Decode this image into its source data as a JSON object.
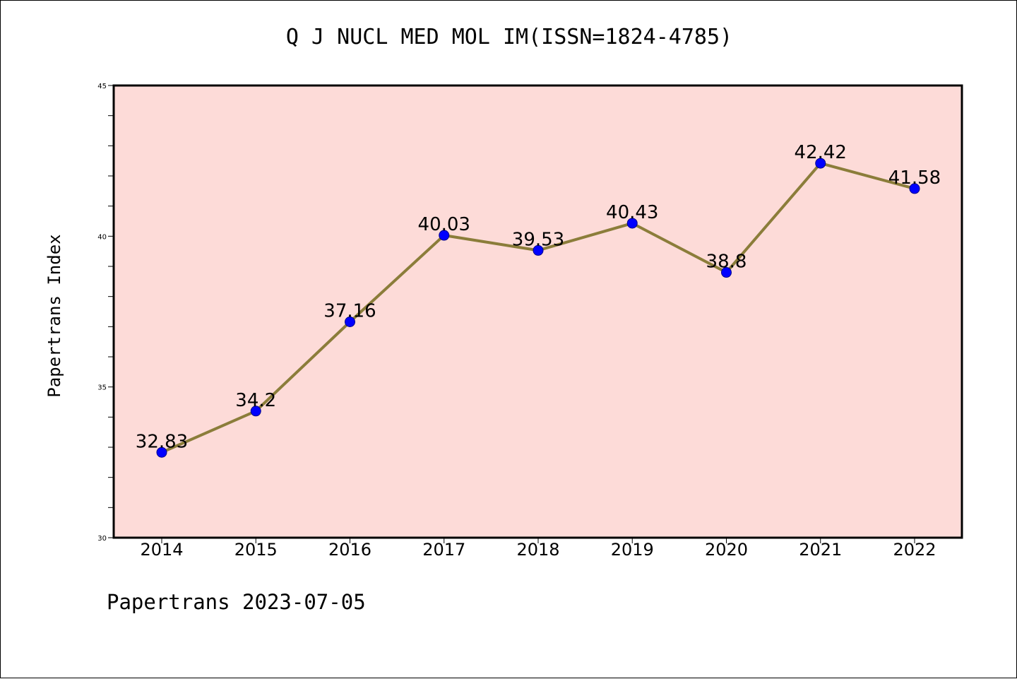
{
  "chart_data": {
    "type": "line",
    "title": "Q J NUCL MED MOL IM(ISSN=1824-4785)",
    "xlabel": "",
    "ylabel": "Papertrans Index",
    "categories": [
      "2014",
      "2015",
      "2016",
      "2017",
      "2018",
      "2019",
      "2020",
      "2021",
      "2022"
    ],
    "series": [
      {
        "values": [
          32.83,
          34.2,
          37.16,
          40.03,
          39.53,
          40.43,
          38.8,
          42.42,
          41.58
        ],
        "labels": [
          "32.83",
          "34.2",
          "37.16",
          "40.03",
          "39.53",
          "40.43",
          "38.8",
          "42.42",
          "41.58"
        ]
      }
    ],
    "ylim": [
      30,
      45
    ],
    "yticks": [
      "30",
      "35",
      "40",
      "45"
    ],
    "ytick_values": [
      30,
      35,
      40,
      45
    ],
    "minor_tick_step": 1,
    "grid": false,
    "colors": {
      "plot_background": "#fddbd8",
      "line": "#8b7d3a",
      "marker": "#0000ff"
    }
  },
  "footer": {
    "text": "Papertrans 2023-07-05"
  }
}
